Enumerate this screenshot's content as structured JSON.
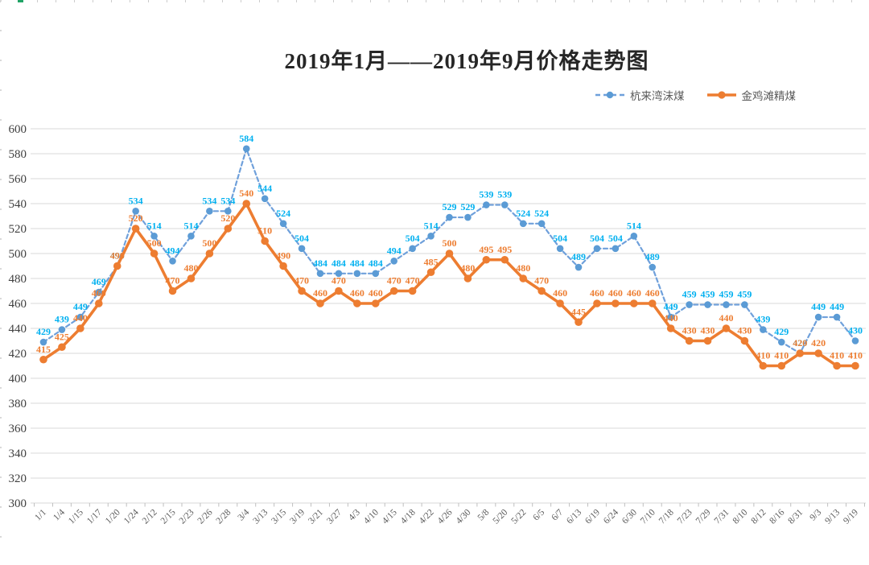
{
  "chart_data": {
    "type": "line",
    "title": "2019年1月——2019年9月价格走势图",
    "xlabel": "",
    "ylabel": "",
    "categories": [
      "1/1",
      "1/4",
      "1/15",
      "1/17",
      "1/20",
      "1/24",
      "2/12",
      "2/15",
      "2/23",
      "2/26",
      "2/28",
      "3/4",
      "3/13",
      "3/15",
      "3/19",
      "3/21",
      "3/27",
      "4/3",
      "4/10",
      "4/15",
      "4/18",
      "4/22",
      "4/26",
      "4/30",
      "5/8",
      "5/20",
      "5/22",
      "6/5",
      "6/7",
      "6/13",
      "6/19",
      "6/24",
      "6/30",
      "7/10",
      "7/18",
      "7/23",
      "7/29",
      "7/31",
      "8/10",
      "8/12",
      "8/16",
      "8/31",
      "9/3",
      "9/13",
      "9/19"
    ],
    "series": [
      {
        "name": "杭来湾沫煤",
        "line_style": "dashed",
        "line_color": "#6FA0DB",
        "marker_color": "#5B9BD5",
        "label_color": "#00B0F0",
        "values": [
          429,
          439,
          449,
          469,
          490,
          534,
          514,
          494,
          514,
          534,
          534,
          584,
          544,
          524,
          504,
          484,
          484,
          484,
          484,
          494,
          504,
          514,
          529,
          529,
          539,
          539,
          524,
          524,
          504,
          489,
          504,
          504,
          514,
          489,
          449,
          459,
          459,
          459,
          459,
          439,
          429,
          420,
          449,
          449,
          430
        ]
      },
      {
        "name": "金鸡滩精煤",
        "line_style": "solid",
        "line_color": "#ED7D31",
        "marker_color": "#ED7D31",
        "label_color": "#ED7D31",
        "values": [
          415,
          425,
          440,
          460,
          490,
          520,
          500,
          470,
          480,
          500,
          520,
          540,
          510,
          490,
          470,
          460,
          470,
          460,
          460,
          470,
          470,
          485,
          500,
          480,
          495,
          495,
          480,
          470,
          460,
          445,
          460,
          460,
          460,
          460,
          440,
          430,
          430,
          440,
          430,
          410,
          410,
          420,
          420,
          410,
          410
        ]
      }
    ],
    "ylim": [
      300,
      600
    ],
    "ytick_step": 20,
    "yticks": [
      300,
      320,
      340,
      360,
      380,
      400,
      420,
      440,
      460,
      480,
      500,
      520,
      540,
      560,
      580,
      600
    ],
    "grid": true,
    "data_labels": true,
    "legend_position": "top-right",
    "gridline_color": "#D9D9D9",
    "axis_color": "#BFBFBF"
  }
}
